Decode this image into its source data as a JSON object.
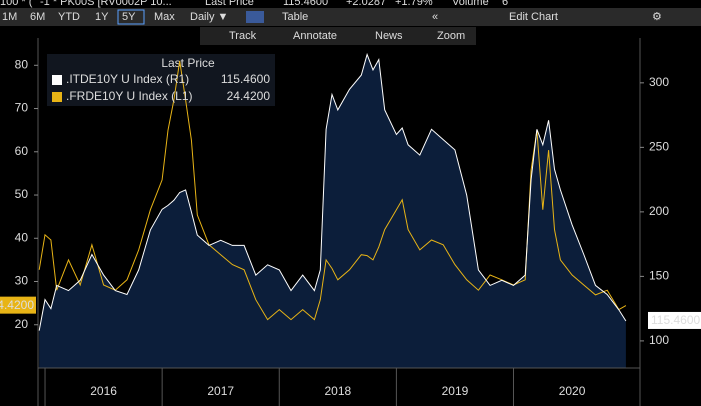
{
  "toolbar": {
    "quote": [
      "100 * (",
      "-1 * PK00S [RV0002P 10...",
      "Last Price",
      "115.4600",
      "+2.0287",
      "+1.79%",
      "Volume",
      "6"
    ],
    "buttons": [
      "1M",
      "6M",
      "YTD",
      "1Y",
      "5Y",
      "Max",
      "Daily ▼",
      "Table",
      "«",
      "Edit Chart",
      "⚙"
    ],
    "tools": [
      "Track",
      "Annotate",
      "News",
      "Zoom"
    ]
  },
  "chart_data": {
    "type": "line",
    "legend_title": "Last Price",
    "x": [
      2015.95,
      2016.0,
      2016.05,
      2016.1,
      2016.2,
      2016.3,
      2016.4,
      2016.5,
      2016.6,
      2016.7,
      2016.8,
      2016.9,
      2017.0,
      2017.05,
      2017.1,
      2017.15,
      2017.2,
      2017.25,
      2017.3,
      2017.4,
      2017.5,
      2017.6,
      2017.7,
      2017.8,
      2017.9,
      2018.0,
      2018.1,
      2018.2,
      2018.3,
      2018.35,
      2018.4,
      2018.45,
      2018.5,
      2018.6,
      2018.7,
      2018.75,
      2018.8,
      2018.85,
      2018.9,
      2019.0,
      2019.05,
      2019.1,
      2019.2,
      2019.3,
      2019.4,
      2019.5,
      2019.6,
      2019.7,
      2019.8,
      2019.9,
      2020.0,
      2020.1,
      2020.15,
      2020.2,
      2020.25,
      2020.3,
      2020.35,
      2020.4,
      2020.5,
      2020.6,
      2020.7,
      2020.8,
      2020.9,
      2020.96
    ],
    "series": [
      {
        "name": ".ITDE10Y U Index (R1)",
        "color": "#ffffff",
        "fill": "#0c1e3a",
        "axis": "y2",
        "last_label": "115.4600",
        "values": [
          108,
          132,
          125,
          143,
          139,
          147,
          167,
          151,
          139,
          136,
          155,
          186,
          202,
          205,
          209,
          215,
          217,
          200,
          182,
          174,
          178,
          174,
          174,
          151,
          159,
          155,
          139,
          151,
          139,
          155,
          264,
          291,
          279,
          295,
          306,
          322,
          310,
          318,
          279,
          260,
          265,
          252,
          244,
          264,
          256,
          248,
          213,
          155,
          143,
          147,
          143,
          151,
          225,
          264,
          252,
          271,
          233,
          217,
          190,
          167,
          143,
          136,
          124,
          115.46
        ]
      },
      {
        "name": ".FRDE10Y U Index (L1)",
        "color": "#e8b416",
        "axis": "y",
        "last_label": "24.4200",
        "values": [
          32.7,
          40.8,
          39.6,
          28,
          35,
          29.2,
          38.5,
          29.2,
          28,
          30.4,
          37.3,
          46.6,
          53.5,
          65,
          72,
          81,
          72,
          62.7,
          45.4,
          38.5,
          36.2,
          33.9,
          32.7,
          25.8,
          21.2,
          23.5,
          21.2,
          23.5,
          21.2,
          25.8,
          35,
          33,
          30.4,
          32.7,
          36.2,
          36,
          35,
          38,
          42,
          46.6,
          48.9,
          42,
          37.3,
          39.6,
          38.5,
          33.9,
          30.4,
          28,
          31.5,
          30.4,
          29.2,
          30.4,
          55.8,
          65,
          46.6,
          60.4,
          42,
          35,
          31.5,
          29.2,
          26.9,
          28,
          23.5,
          24.42
        ]
      }
    ],
    "xlim": [
      2015.94,
      2021.08
    ],
    "xticks": [
      {
        "value": 2016,
        "label": "2016"
      },
      {
        "value": 2017,
        "label": "2017"
      },
      {
        "value": 2018,
        "label": "2018"
      },
      {
        "value": 2019,
        "label": "2019"
      },
      {
        "value": 2020,
        "label": "2020"
      }
    ],
    "ylim": [
      10,
      84
    ],
    "yticks": [
      20,
      30,
      40,
      50,
      60,
      70,
      80
    ],
    "y2lim": [
      79,
      327
    ],
    "y2ticks": [
      100,
      150,
      200,
      250,
      300
    ],
    "grid": false,
    "legend": "upper left"
  }
}
